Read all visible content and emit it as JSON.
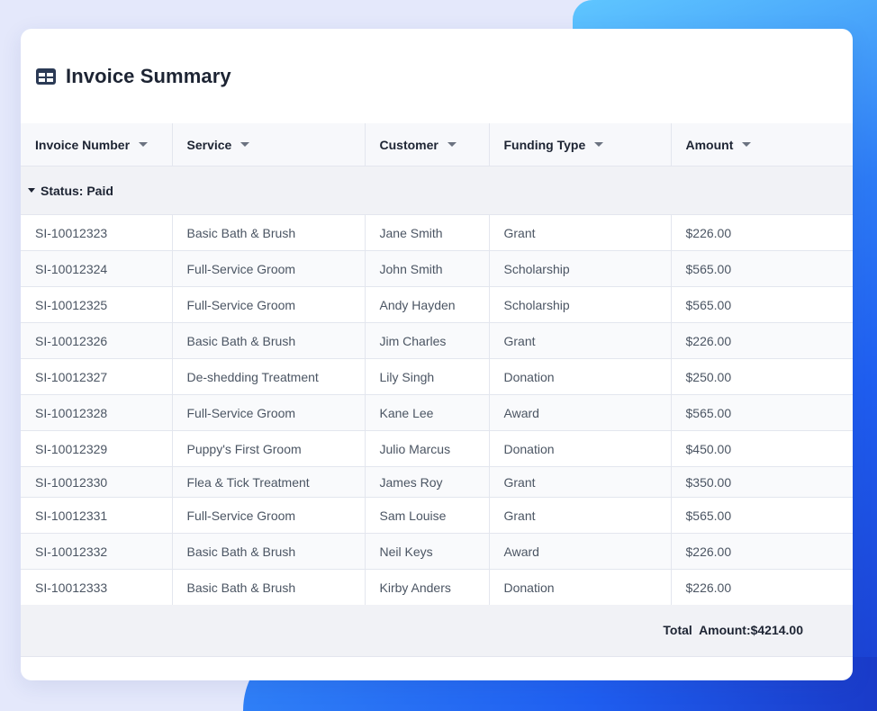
{
  "card": {
    "title": "Invoice Summary",
    "icon": "table-icon"
  },
  "columns": [
    {
      "label": "Invoice Number"
    },
    {
      "label": "Service"
    },
    {
      "label": "Customer"
    },
    {
      "label": "Funding Type"
    },
    {
      "label": "Amount"
    }
  ],
  "group": {
    "label": "Status: Paid"
  },
  "rows": [
    [
      "SI-10012323",
      "Basic Bath & Brush",
      "Jane Smith",
      "Grant",
      "$226.00"
    ],
    [
      "SI-10012324",
      "Full-Service Groom",
      "John Smith",
      "Scholarship",
      "$565.00"
    ],
    [
      "SI-10012325",
      "Full-Service Groom",
      "Andy Hayden",
      "Scholarship",
      "$565.00"
    ],
    [
      "SI-10012326",
      "Basic Bath & Brush",
      "Jim Charles",
      "Grant",
      "$226.00"
    ],
    [
      "SI-10012327",
      "De-shedding Treatment",
      "Lily Singh",
      "Donation",
      "$250.00"
    ],
    [
      "SI-10012328",
      "Full-Service Groom",
      "Kane Lee",
      "Award",
      "$565.00"
    ],
    [
      "SI-10012329",
      "Puppy's First Groom",
      "Julio Marcus",
      "Donation",
      "$450.00"
    ],
    [
      "SI-10012330",
      "Flea & Tick Treatment",
      "James Roy",
      "Grant",
      "$350.00"
    ],
    [
      "SI-10012331",
      "Full-Service Groom",
      "Sam Louise",
      "Grant",
      "$565.00"
    ],
    [
      "SI-10012332",
      "Basic Bath & Brush",
      "Neil Keys",
      "Award",
      "$226.00"
    ],
    [
      "SI-10012333",
      "Basic Bath & Brush",
      "Kirby Anders",
      "Donation",
      "$226.00"
    ]
  ],
  "footer": {
    "total": "Total  Amount:$4214.00"
  },
  "colors": {
    "accent": "#1f5ef0",
    "icon": "#2b3a55",
    "page_bg": "#e4e8fb"
  }
}
